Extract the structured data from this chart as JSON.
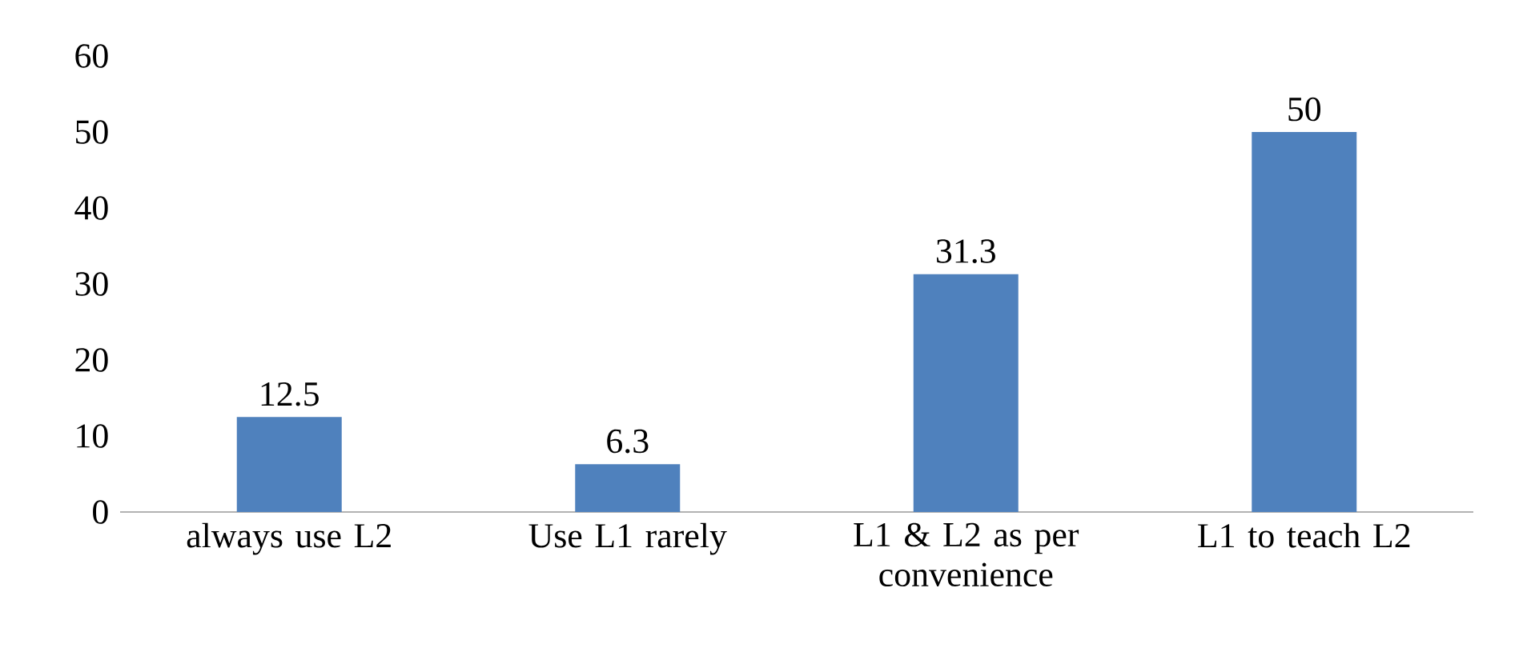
{
  "chart_data": {
    "type": "bar",
    "categories": [
      "always use L2",
      "Use L1 rarely",
      "L1 & L2 as per convenience",
      "L1 to teach L2"
    ],
    "values": [
      12.5,
      6.3,
      31.3,
      50
    ],
    "color": "#4f81bd",
    "ylim": [
      0,
      60
    ],
    "yticks": [
      0,
      10,
      20,
      30,
      40,
      50,
      60
    ],
    "data_labels": true
  }
}
